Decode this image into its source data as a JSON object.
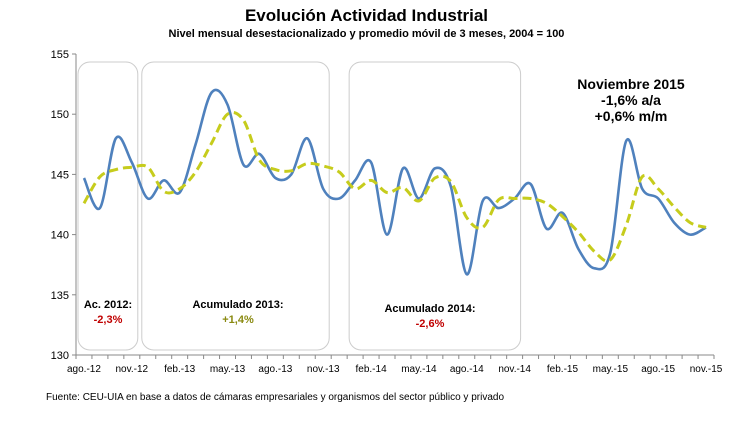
{
  "title": "Evolución Actividad Industrial",
  "subtitle": "Nivel mensual desestacionalizado y promedio móvil de 3 meses, 2004 = 100",
  "source": "Fuente: CEU-UIA en base a datos de cámaras empresariales y organismos del sector público y privado",
  "annotation": {
    "line1": "Noviembre 2015",
    "line2": "-1,6% a/a",
    "line3": "+0,6% m/m"
  },
  "periods": [
    {
      "label": "Ac. 2012:",
      "value": "-2,3%",
      "color": "#c00000"
    },
    {
      "label": "Acumulado 2013:",
      "value": "+1,4%",
      "color": "#8a8a10"
    },
    {
      "label": "Acumulado 2014:",
      "value": "-2,6%",
      "color": "#c00000"
    }
  ],
  "colors": {
    "series_level": "#4f81bd",
    "series_moving_avg": "#c6cc1c",
    "box_border": "#cccccc"
  },
  "chart_data": {
    "type": "line",
    "title": "Evolución Actividad Industrial",
    "subtitle": "Nivel mensual desestacionalizado y promedio móvil de 3 meses, 2004 = 100",
    "ylim": [
      130,
      155
    ],
    "yticks": [
      130,
      135,
      140,
      145,
      150,
      155
    ],
    "x": [
      "ago.-12",
      "sep.-12",
      "oct.-12",
      "nov.-12",
      "dic.-12",
      "ene.-13",
      "feb.-13",
      "mar.-13",
      "abr.-13",
      "may.-13",
      "jun.-13",
      "jul.-13",
      "ago.-13",
      "sep.-13",
      "oct.-13",
      "nov.-13",
      "dic.-13",
      "ene.-14",
      "feb.-14",
      "mar.-14",
      "abr.-14",
      "may.-14",
      "jun.-14",
      "jul.-14",
      "ago.-14",
      "sep.-14",
      "oct.-14",
      "nov.-14",
      "dic.-14",
      "ene.-15",
      "feb.-15",
      "mar.-15",
      "abr.-15",
      "may.-15",
      "jun.-15",
      "jul.-15",
      "ago.-15",
      "sep.-15",
      "oct.-15",
      "nov.-15"
    ],
    "xtick_labels": [
      "ago.-12",
      "nov.-12",
      "feb.-13",
      "may.-13",
      "ago.-13",
      "nov.-13",
      "feb.-14",
      "may.-14",
      "ago.-14",
      "nov.-14",
      "feb.-15",
      "may.-15",
      "ago.-15",
      "nov.-15"
    ],
    "grid": false,
    "series": [
      {
        "values": [
          144.7,
          142.2,
          148.0,
          146.0,
          143.0,
          144.5,
          143.5,
          147.5,
          151.8,
          150.8,
          145.8,
          146.7,
          144.7,
          145.0,
          148.0,
          143.8,
          143.0,
          144.5,
          146.0,
          140.0,
          145.5,
          143.0,
          145.5,
          144.0,
          136.7,
          142.8,
          142.2,
          143.0,
          144.2,
          140.5,
          141.8,
          138.8,
          137.2,
          138.5,
          147.8,
          143.8,
          143.0,
          141.0,
          140.0,
          140.6
        ]
      },
      {
        "values": [
          142.6,
          144.8,
          145.4,
          145.6,
          145.6,
          143.6,
          143.8,
          145.2,
          147.6,
          150.0,
          149.5,
          146.2,
          145.4,
          145.3,
          145.9,
          145.7,
          145.2,
          143.8,
          144.5,
          143.5,
          143.9,
          142.8,
          144.7,
          144.4,
          141.4,
          140.6,
          142.9,
          143.0,
          143.0,
          142.6,
          141.5,
          140.2,
          138.6,
          137.9,
          140.8,
          144.8,
          143.8,
          142.3,
          141.0,
          140.6
        ]
      }
    ]
  }
}
